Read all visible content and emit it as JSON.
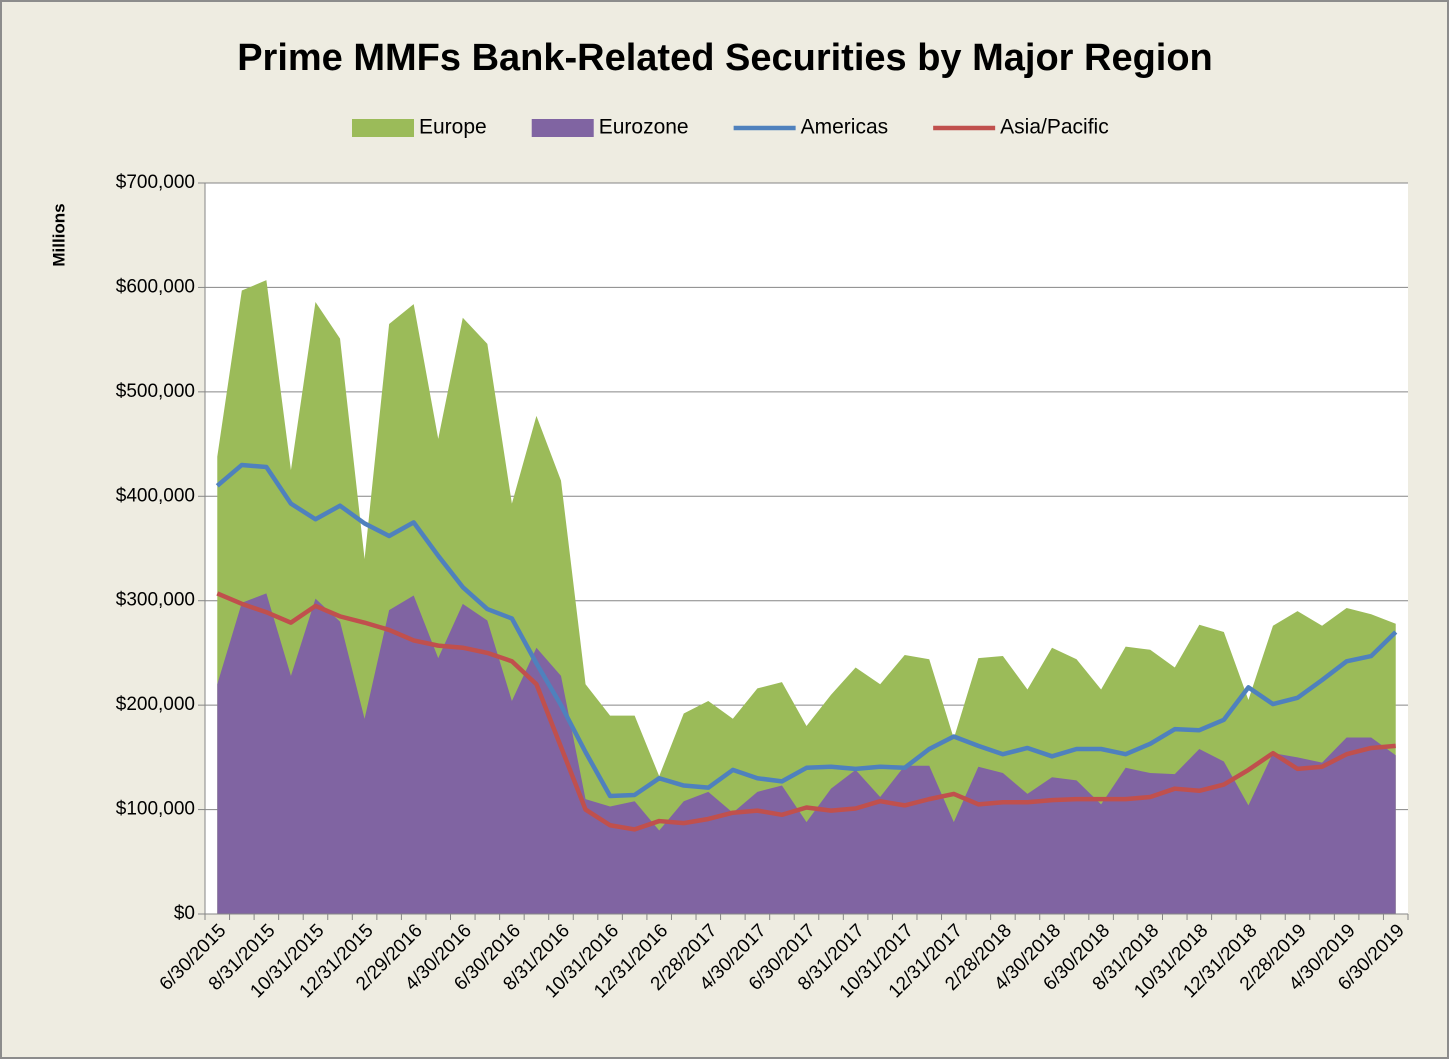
{
  "chart_data": {
    "type": "combo",
    "title": "Prime MMFs Bank-Related Securities by Major Region",
    "y_label": "Millions",
    "categories": [
      "6/30/2015",
      null,
      "8/31/2015",
      null,
      "10/31/2015",
      null,
      "12/31/2015",
      null,
      "2/29/2016",
      null,
      "4/30/2016",
      null,
      "6/30/2016",
      null,
      "8/31/2016",
      null,
      "10/31/2016",
      null,
      "12/31/2016",
      null,
      "2/28/2017",
      null,
      "4/30/2017",
      null,
      "6/30/2017",
      null,
      "8/31/2017",
      null,
      "10/31/2017",
      null,
      "12/31/2017",
      null,
      "2/28/2018",
      null,
      "4/30/2018",
      null,
      "6/30/2018",
      null,
      "8/31/2018",
      null,
      "10/31/2018",
      null,
      "12/31/2018",
      null,
      "2/28/2019",
      null,
      "4/30/2019",
      null,
      "6/30/2019"
    ],
    "series": [
      {
        "name": "Europe",
        "type": "area",
        "color": "#9bbb59",
        "values": [
          438000,
          597000,
          607000,
          425000,
          586000,
          551000,
          340000,
          565000,
          584000,
          455000,
          571000,
          546000,
          393000,
          477000,
          415000,
          220000,
          190000,
          190000,
          132000,
          192000,
          204000,
          187000,
          216000,
          222000,
          180000,
          210000,
          236000,
          220000,
          248000,
          244000,
          168000,
          245000,
          247000,
          215000,
          255000,
          244000,
          215000,
          256000,
          253000,
          236000,
          277000,
          270000,
          205000,
          276000,
          290000,
          276000,
          293000,
          287000,
          278000
        ]
      },
      {
        "name": "Eurozone",
        "type": "area",
        "color": "#8064a2",
        "values": [
          220000,
          298000,
          307000,
          228000,
          302000,
          280000,
          187000,
          291000,
          305000,
          245000,
          297000,
          281000,
          204000,
          255000,
          228000,
          110000,
          103000,
          108000,
          80000,
          108000,
          117000,
          97000,
          117000,
          123000,
          88000,
          120000,
          138000,
          112000,
          142000,
          142000,
          88000,
          141000,
          135000,
          115000,
          131000,
          128000,
          105000,
          140000,
          135000,
          134000,
          158000,
          146000,
          104000,
          154000,
          150000,
          145000,
          169000,
          169000,
          152000
        ]
      },
      {
        "name": "Americas",
        "type": "line",
        "color": "#4f81bd",
        "values": [
          410000,
          430000,
          428000,
          393000,
          378000,
          391000,
          374000,
          362000,
          375000,
          343000,
          313000,
          292000,
          283000,
          240000,
          200000,
          155000,
          113000,
          114000,
          130000,
          123000,
          121000,
          138000,
          130000,
          127000,
          140000,
          141000,
          139000,
          141000,
          140000,
          158000,
          170000,
          161000,
          153000,
          159000,
          151000,
          158000,
          158000,
          153000,
          163000,
          177000,
          176000,
          186000,
          217000,
          201000,
          207000,
          224000,
          242000,
          247000,
          270000
        ]
      },
      {
        "name": "Asia/Pacific",
        "type": "line",
        "color": "#c0504d",
        "values": [
          307000,
          297000,
          289000,
          279000,
          295000,
          285000,
          279000,
          272000,
          262000,
          257000,
          255000,
          250000,
          242000,
          220000,
          160000,
          100000,
          85000,
          81000,
          89000,
          87000,
          91000,
          97000,
          99000,
          95000,
          102000,
          99000,
          101000,
          108000,
          104000,
          110000,
          115000,
          105000,
          107000,
          107000,
          109000,
          110000,
          110000,
          110000,
          112000,
          120000,
          118000,
          124000,
          138000,
          154000,
          139000,
          141000,
          153000,
          159000,
          161000
        ]
      }
    ],
    "ylim": [
      0,
      700000
    ],
    "yticks": [
      {
        "value": 0,
        "label": "$0"
      },
      {
        "value": 100000,
        "label": "$100,000"
      },
      {
        "value": 200000,
        "label": "$200,000"
      },
      {
        "value": 300000,
        "label": "$300,000"
      },
      {
        "value": 400000,
        "label": "$400,000"
      },
      {
        "value": 500000,
        "label": "$500,000"
      },
      {
        "value": 600000,
        "label": "$600,000"
      },
      {
        "value": 700000,
        "label": "$700,000"
      }
    ],
    "grid": true,
    "legend": "top"
  }
}
